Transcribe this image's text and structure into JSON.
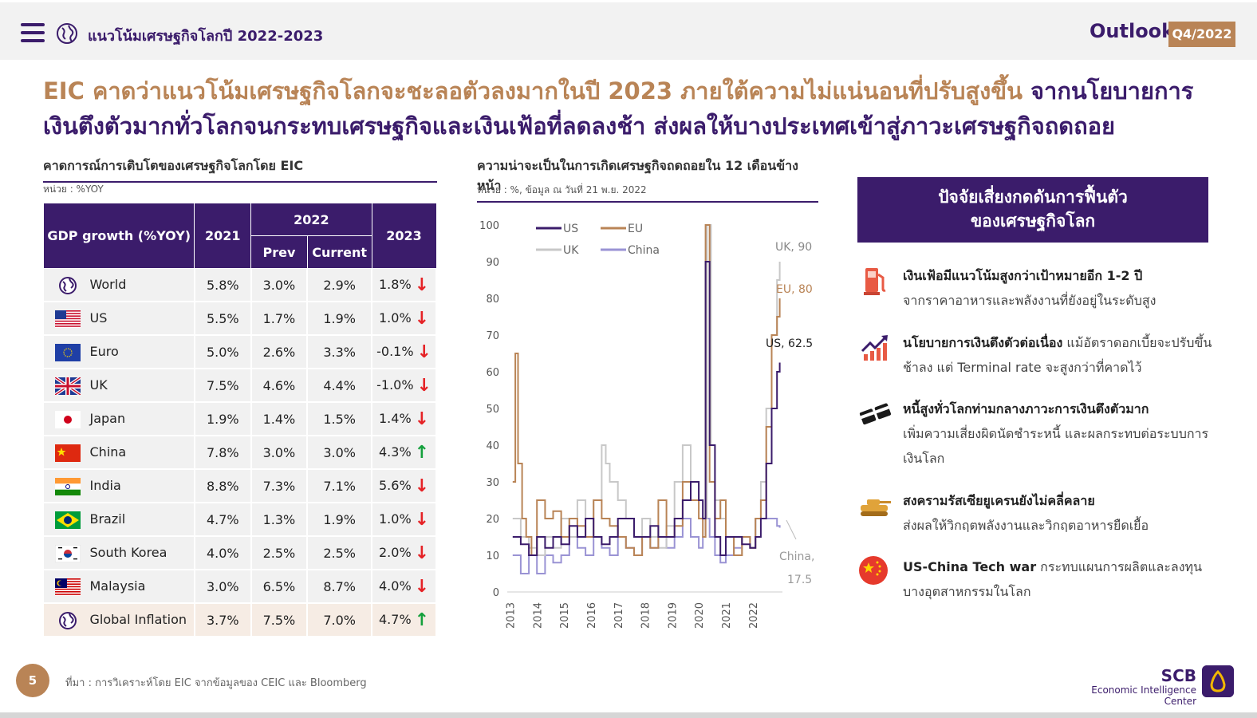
{
  "topbar": {
    "title": "แนวโน้มเศรษฐกิจโลกปี 2022-2023",
    "outlook_label": "Outlook",
    "quarter_badge": "Q4/2022"
  },
  "headline": {
    "part1": "EIC คาดว่าแนวโน้มเศรษฐกิจโลกจะชะลอตัวลงมากในปี 2023 ภายใต้ความไม่แน่นอนที่ปรับสูงขึ้น",
    "part2": " จากนโยบายการเงินตึงตัวมากทั่วโลกจนกระทบเศรษฐกิจและเงินเฟ้อที่ลดลงช้า ส่งผลให้บางประเทศเข้าสู่ภาวะเศรษฐกิจถดถอย"
  },
  "table_section": {
    "title": "คาดการณ์การเติบโตของเศรษฐกิจโลกโดย EIC",
    "unit": "หน่วย : %YOY",
    "headers": {
      "col_name": "GDP growth (%YOY)",
      "col_2021": "2021",
      "col_2022": "2022",
      "col_prev": "Prev",
      "col_current": "Current",
      "col_2023": "2023"
    },
    "rows": [
      {
        "name": "World",
        "y2021": "5.8%",
        "prev": "3.0%",
        "current": "2.9%",
        "y2023": "1.8%",
        "trend": "down",
        "flag": "globe"
      },
      {
        "name": "US",
        "y2021": "5.5%",
        "prev": "1.7%",
        "current": "1.9%",
        "y2023": "1.0%",
        "trend": "down",
        "flag": "us"
      },
      {
        "name": "Euro",
        "y2021": "5.0%",
        "prev": "2.6%",
        "current": "3.3%",
        "y2023": "-0.1%",
        "trend": "down",
        "flag": "eu"
      },
      {
        "name": "UK",
        "y2021": "7.5%",
        "prev": "4.6%",
        "current": "4.4%",
        "y2023": "-1.0%",
        "trend": "down",
        "flag": "uk"
      },
      {
        "name": "Japan",
        "y2021": "1.9%",
        "prev": "1.4%",
        "current": "1.5%",
        "y2023": "1.4%",
        "trend": "down",
        "flag": "jp"
      },
      {
        "name": "China",
        "y2021": "7.8%",
        "prev": "3.0%",
        "current": "3.0%",
        "y2023": "4.3%",
        "trend": "up",
        "flag": "cn"
      },
      {
        "name": "India",
        "y2021": "8.8%",
        "prev": "7.3%",
        "current": "7.1%",
        "y2023": "5.6%",
        "trend": "down",
        "flag": "in"
      },
      {
        "name": "Brazil",
        "y2021": "4.7%",
        "prev": "1.3%",
        "current": "1.9%",
        "y2023": "1.0%",
        "trend": "down",
        "flag": "br"
      },
      {
        "name": "South Korea",
        "y2021": "4.0%",
        "prev": "2.5%",
        "current": "2.5%",
        "y2023": "2.0%",
        "trend": "down",
        "flag": "kr"
      },
      {
        "name": "Malaysia",
        "y2021": "3.0%",
        "prev": "6.5%",
        "current": "8.7%",
        "y2023": "4.0%",
        "trend": "down",
        "flag": "my"
      },
      {
        "name": "Global Inflation",
        "y2021": "3.7%",
        "prev": "7.5%",
        "current": "7.0%",
        "y2023": "4.7%",
        "trend": "up",
        "flag": "globe"
      }
    ]
  },
  "chart_section": {
    "title": "ความน่าจะเป็นในการเกิดเศรษฐกิจถดถอยใน 12 เดือนข้างหน้า",
    "unit": "หน่วย : %, ข้อมูล ณ วันที่ 21 พ.ย. 2022"
  },
  "chart_data": {
    "type": "line",
    "ylim": [
      0,
      100
    ],
    "yticks": [
      0,
      10,
      20,
      30,
      40,
      50,
      60,
      70,
      80,
      90,
      100
    ],
    "xticks": [
      "2013",
      "2014",
      "2015",
      "2016",
      "2017",
      "2018",
      "2019",
      "2020",
      "2021",
      "2022"
    ],
    "legend_position": "top-left",
    "annotations": [
      {
        "text": "UK, 90",
        "series": "UK"
      },
      {
        "text": "EU, 80",
        "series": "EU"
      },
      {
        "text": "US, 62.5",
        "series": "US"
      },
      {
        "text": "China,",
        "series": "China"
      },
      {
        "text": "17.5",
        "series": "China"
      }
    ],
    "series": [
      {
        "name": "US",
        "color": "#3b1c6b",
        "x": [
          2013.0,
          2013.3,
          2013.6,
          2013.9,
          2014.2,
          2014.5,
          2014.8,
          2015.1,
          2015.4,
          2015.7,
          2016.0,
          2016.3,
          2016.6,
          2016.9,
          2017.2,
          2017.5,
          2017.8,
          2018.1,
          2018.4,
          2018.7,
          2019.0,
          2019.3,
          2019.6,
          2019.9,
          2020.05,
          2020.15,
          2020.3,
          2020.5,
          2020.7,
          2020.9,
          2021.2,
          2021.5,
          2021.8,
          2022.0,
          2022.2,
          2022.4,
          2022.6,
          2022.8,
          2022.9
        ],
        "y": [
          15,
          13,
          10,
          15,
          12,
          15,
          13,
          18,
          15,
          20,
          15,
          13,
          15,
          20,
          20,
          15,
          15,
          18,
          15,
          15,
          20,
          25,
          30,
          25,
          20,
          90,
          40,
          15,
          10,
          15,
          15,
          13,
          12,
          15,
          20,
          35,
          50,
          60,
          62.5
        ]
      },
      {
        "name": "EU",
        "color": "#b98456",
        "x": [
          2013.0,
          2013.1,
          2013.2,
          2013.35,
          2013.5,
          2013.7,
          2013.9,
          2014.2,
          2014.5,
          2014.8,
          2015.1,
          2015.4,
          2015.7,
          2016.0,
          2016.3,
          2016.6,
          2016.9,
          2017.2,
          2017.5,
          2017.8,
          2018.1,
          2018.4,
          2018.7,
          2019.0,
          2019.3,
          2019.6,
          2019.9,
          2020.05,
          2020.15,
          2020.3,
          2020.5,
          2020.7,
          2020.9,
          2021.2,
          2021.5,
          2021.8,
          2022.0,
          2022.2,
          2022.4,
          2022.6,
          2022.8,
          2022.9
        ],
        "y": [
          30,
          65,
          35,
          20,
          15,
          10,
          25,
          20,
          22,
          15,
          20,
          18,
          15,
          25,
          20,
          18,
          15,
          12,
          10,
          15,
          12,
          25,
          15,
          18,
          30,
          25,
          20,
          15,
          100,
          30,
          20,
          25,
          15,
          10,
          15,
          12,
          20,
          25,
          45,
          70,
          75,
          80
        ]
      },
      {
        "name": "UK",
        "color": "#c8c8c8",
        "x": [
          2013.0,
          2013.3,
          2013.6,
          2013.9,
          2014.2,
          2014.5,
          2014.8,
          2015.1,
          2015.4,
          2015.7,
          2016.0,
          2016.3,
          2016.45,
          2016.6,
          2016.9,
          2017.2,
          2017.5,
          2017.8,
          2018.1,
          2018.4,
          2018.7,
          2019.0,
          2019.3,
          2019.6,
          2019.9,
          2020.05,
          2020.2,
          2020.35,
          2020.5,
          2020.7,
          2020.9,
          2021.2,
          2021.5,
          2021.8,
          2022.0,
          2022.2,
          2022.4,
          2022.6,
          2022.8,
          2022.9
        ],
        "y": [
          20,
          15,
          12,
          10,
          15,
          12,
          20,
          15,
          25,
          20,
          25,
          40,
          35,
          30,
          25,
          20,
          15,
          20,
          15,
          12,
          18,
          30,
          40,
          30,
          25,
          20,
          100,
          40,
          25,
          20,
          15,
          10,
          15,
          12,
          20,
          30,
          50,
          70,
          85,
          90
        ]
      },
      {
        "name": "China",
        "color": "#9a93d4",
        "x": [
          2013.0,
          2013.3,
          2013.6,
          2013.9,
          2014.2,
          2014.5,
          2014.8,
          2015.1,
          2015.4,
          2015.7,
          2016.0,
          2016.3,
          2016.6,
          2016.9,
          2017.2,
          2017.5,
          2017.8,
          2018.1,
          2018.4,
          2018.7,
          2019.0,
          2019.3,
          2019.6,
          2019.9,
          2020.05,
          2020.15,
          2020.3,
          2020.5,
          2020.7,
          2020.9,
          2021.2,
          2021.5,
          2021.8,
          2022.0,
          2022.3,
          2022.6,
          2022.8,
          2022.9
        ],
        "y": [
          10,
          5,
          10,
          5,
          10,
          8,
          10,
          15,
          12,
          10,
          15,
          12,
          10,
          15,
          12,
          10,
          15,
          12,
          15,
          12,
          15,
          20,
          15,
          12,
          15,
          20,
          15,
          10,
          8,
          10,
          12,
          15,
          12,
          20,
          20,
          20,
          18,
          17.5
        ]
      }
    ]
  },
  "risk_panel": {
    "title_line1": "ปัจจัยเสี่ยงกดดันการฟื้นตัว",
    "title_line2": "ของเศรษฐกิจโลก",
    "items": [
      {
        "icon": "gas-pump-icon",
        "bold": "เงินเฟ้อมีแนวโน้มสูงกว่าเป้าหมายอีก 1-2 ปี",
        "text": "จากราคาอาหารและพลังงานที่ยังอยู่ในระดับสูง"
      },
      {
        "icon": "rising-chart-icon",
        "bold": "นโยบายการเงินตึงตัวต่อเนื่อง",
        "text": " แม้อัตราดอกเบี้ยจะปรับขึ้นช้าลง แต่ Terminal rate จะสูงกว่าที่คาดไว้"
      },
      {
        "icon": "broken-card-icon",
        "bold": "หนี้สูงทั่วโลกท่ามกลางภาวะการเงินตึงตัวมาก",
        "text": "เพิ่มความเสี่ยงผิดนัดชำระหนี้ และผลกระทบต่อระบบการเงินโลก"
      },
      {
        "icon": "tank-icon",
        "bold": "สงครามรัสเซียยูเครนยังไม่คลี่คลาย",
        "text": "ส่งผลให้วิกฤตพลังงานและวิกฤตอาหารยืดเยื้อ"
      },
      {
        "icon": "china-flag-icon",
        "bold": "US-China Tech war",
        "text": " กระทบแผนการผลิตและลงทุนบางอุตสาหกรรมในโลก"
      }
    ]
  },
  "footer": {
    "page_number": "5",
    "source": "ที่มา : การวิเคราะห์โดย EIC จากข้อมูลของ CEIC และ Bloomberg",
    "brand_name": "SCB",
    "brand_sub": "Economic Intelligence Center"
  },
  "colors": {
    "purple": "#3b1c6b",
    "gold": "#b98456",
    "down": "#e52226",
    "up": "#14a03c"
  }
}
